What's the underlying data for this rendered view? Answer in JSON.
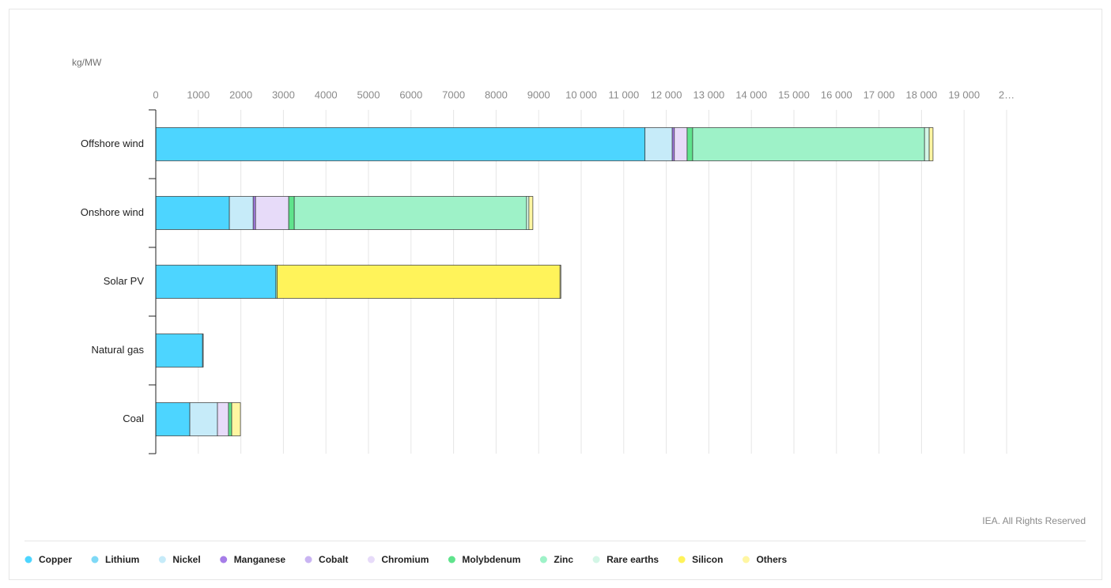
{
  "chart_data": {
    "type": "bar",
    "orientation": "horizontal",
    "stacked": true,
    "unit_label": "kg/MW",
    "credit": "IEA. All Rights Reserved",
    "categories": [
      "Offshore wind",
      "Onshore wind",
      "Solar PV",
      "Natural gas",
      "Coal"
    ],
    "series": [
      {
        "name": "Copper",
        "color": "#4dd5ff",
        "values": [
          11500,
          1730,
          2822,
          1100,
          800
        ]
      },
      {
        "name": "Lithium",
        "color": "#7fd9f6",
        "values": [
          0,
          0,
          0,
          0,
          0
        ]
      },
      {
        "name": "Nickel",
        "color": "#c6ebf9",
        "values": [
          640,
          560,
          0,
          16,
          650
        ]
      },
      {
        "name": "Manganese",
        "color": "#a67de8",
        "values": [
          50,
          55,
          0,
          0,
          0
        ]
      },
      {
        "name": "Cobalt",
        "color": "#c9b4f2",
        "values": [
          0,
          0,
          0,
          0,
          0
        ]
      },
      {
        "name": "Chromium",
        "color": "#e7dbf9",
        "values": [
          300,
          780,
          0,
          0,
          260
        ]
      },
      {
        "name": "Molybdenum",
        "color": "#5fe38c",
        "values": [
          130,
          130,
          0,
          0,
          75
        ]
      },
      {
        "name": "Zinc",
        "color": "#9ef2c8",
        "values": [
          5450,
          5460,
          30,
          0,
          0
        ]
      },
      {
        "name": "Rare earths",
        "color": "#d3f6e6",
        "values": [
          110,
          56,
          0,
          0,
          0
        ]
      },
      {
        "name": "Silicon",
        "color": "#fff35a",
        "values": [
          0,
          0,
          6650,
          0,
          0
        ]
      },
      {
        "name": "Others",
        "color": "#fff6a2",
        "values": [
          90,
          93,
          20,
          0,
          205
        ]
      }
    ],
    "xlim": [
      0,
      20000
    ],
    "xticks": [
      0,
      1000,
      2000,
      3000,
      4000,
      5000,
      6000,
      7000,
      8000,
      9000,
      {
        "value": 10000,
        "label": "10 000"
      },
      {
        "value": 11000,
        "label": "11 000"
      },
      {
        "value": 12000,
        "label": "12 000"
      },
      {
        "value": 13000,
        "label": "13 000"
      },
      {
        "value": 14000,
        "label": "14 000"
      },
      {
        "value": 15000,
        "label": "15 000"
      },
      {
        "value": 16000,
        "label": "16 000"
      },
      {
        "value": 17000,
        "label": "17 000"
      },
      {
        "value": 18000,
        "label": "18 000"
      },
      {
        "value": 19000,
        "label": "19 000"
      },
      {
        "value": 20000,
        "label": "2…"
      }
    ],
    "grid": true
  }
}
